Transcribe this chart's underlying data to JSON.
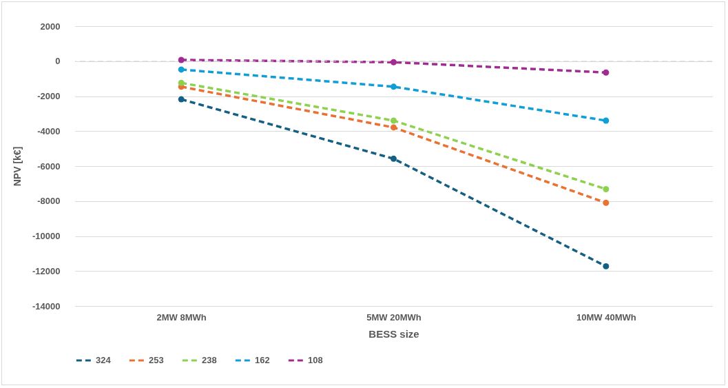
{
  "chart_data": {
    "type": "line",
    "xlabel": "BESS size",
    "ylabel": "NPV [k€]",
    "categories": [
      "2MW 8MWh",
      "5MW 20MWh",
      "10MW 40MWh"
    ],
    "series": [
      {
        "name": "324",
        "color": "#156082",
        "values": [
          -2180,
          -5580,
          -11730
        ]
      },
      {
        "name": "253",
        "color": "#e97132",
        "values": [
          -1460,
          -3790,
          -8100
        ]
      },
      {
        "name": "238",
        "color": "#8ed14f",
        "values": [
          -1240,
          -3400,
          -7320
        ]
      },
      {
        "name": "162",
        "color": "#0f9ed5",
        "values": [
          -480,
          -1460,
          -3400
        ]
      },
      {
        "name": "108",
        "color": "#a02b93",
        "values": [
          70,
          -60,
          -650
        ]
      }
    ],
    "ylim": [
      -14000,
      2000
    ],
    "yticks": [
      -14000,
      -12000,
      -10000,
      -8000,
      -6000,
      -4000,
      -2000,
      0,
      2000
    ],
    "ref_lines": [
      {
        "axis": "y",
        "value": 0,
        "color": "#d9d9d9",
        "line_style": "dashed"
      }
    ],
    "grid": "y",
    "legend": "bottom",
    "marker": "circle",
    "line_style": "dashed"
  }
}
